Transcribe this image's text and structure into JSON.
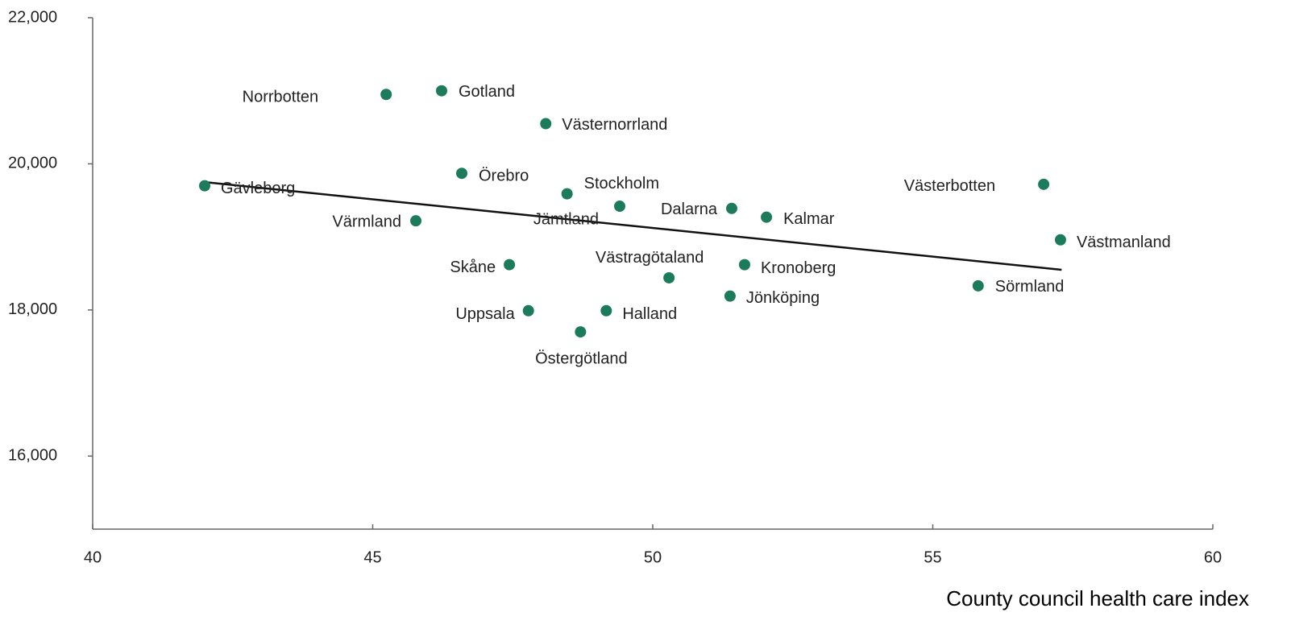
{
  "chart_data": {
    "type": "scatter",
    "x_label": "County council health care index",
    "color": "#1b7b5b",
    "xlim": [
      40,
      60
    ],
    "xticks": [
      40,
      45,
      50,
      55,
      60
    ],
    "ylim": [
      15000,
      22000
    ],
    "yticks": [
      {
        "value": 16000,
        "label": "16,000"
      },
      {
        "value": 18000,
        "label": "18,000"
      },
      {
        "value": 20000,
        "label": "20,000"
      },
      {
        "value": 22000,
        "label": "22,000"
      }
    ],
    "labels": [
      "Gävleborg",
      "Norrbotten",
      "Gotland",
      "Västernorrland",
      "Örebro",
      "Stockholm",
      "Jämtland",
      "Dalarna",
      "Kalmar",
      "Värmland",
      "Västerbotten",
      "Västmanland",
      "Skåne",
      "Kronoberg",
      "Västragötaland",
      "Sörmland",
      "Jönköping",
      "Uppsala",
      "Halland",
      "Östergötland"
    ],
    "x": [
      42.0,
      45.24,
      46.23,
      48.09,
      46.59,
      48.47,
      49.41,
      51.41,
      52.03,
      45.77,
      56.98,
      57.28,
      47.44,
      51.64,
      50.29,
      55.81,
      51.38,
      47.78,
      49.17,
      48.71
    ],
    "values": [
      19700,
      20950,
      21000,
      20550,
      19870,
      19590,
      19420,
      19390,
      19270,
      19220,
      19720,
      18960,
      18620,
      18620,
      18440,
      18330,
      18190,
      17990,
      17990,
      17700
    ],
    "trendline": {
      "color": "#111111",
      "x": [
        42.0,
        57.3
      ],
      "y": [
        19750,
        18550
      ]
    }
  }
}
